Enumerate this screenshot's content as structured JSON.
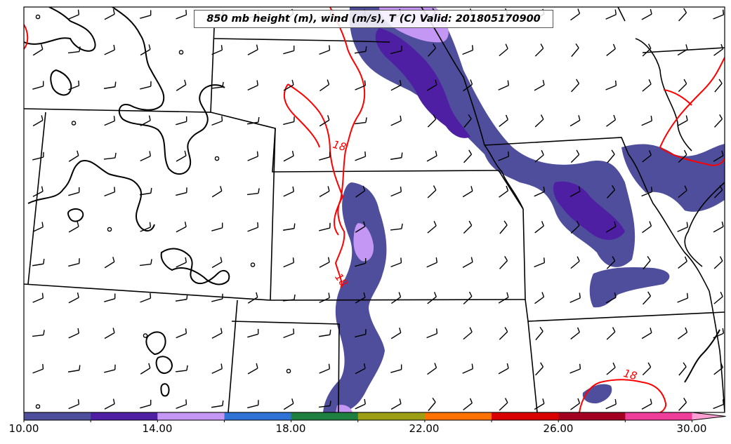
{
  "title": "850 mb height (m), wind (m/s), T (C) Valid: 201805170900",
  "colorbar": {
    "tick_labels": [
      "10.00",
      "14.00",
      "18.00",
      "22.00",
      "26.00",
      "30.00"
    ],
    "colors": [
      "#4f4e9c",
      "#4e1fa3",
      "#c597f5",
      "#2e72d6",
      "#1f7f40",
      "#9c9e13",
      "#ff7200",
      "#d80000",
      "#a30021",
      "#ef3d9a",
      "#ff9fd4"
    ],
    "extend": "max"
  },
  "contour_labels": [
    "18",
    "18",
    "18"
  ],
  "styles": {
    "temperature_contour_color": "#ff0000",
    "height_contour_color": "#000000",
    "map_border_color": "#000000"
  }
}
